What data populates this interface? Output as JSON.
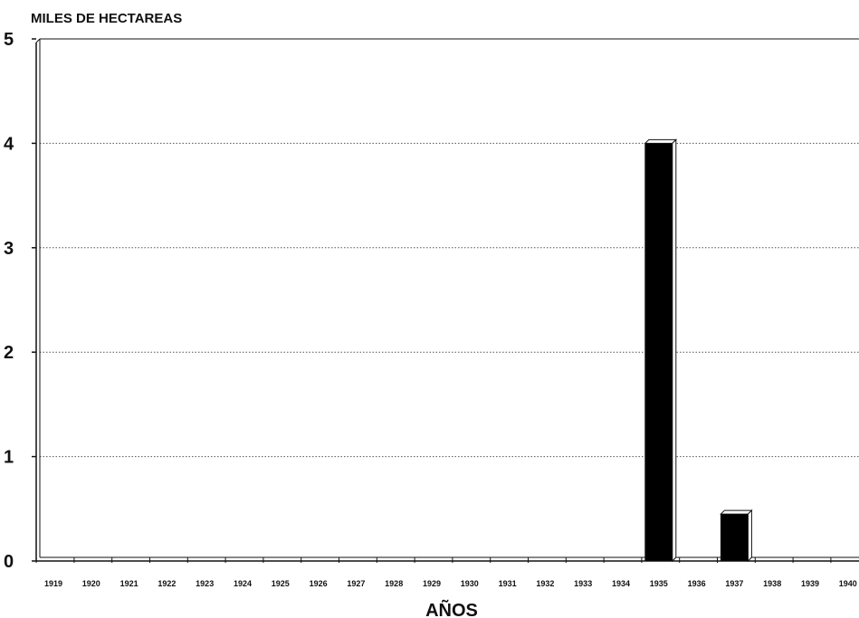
{
  "chart_data": {
    "type": "bar",
    "ylabel": "MILES DE HECTAREAS",
    "xlabel": "AÑOS",
    "ylim": [
      0,
      5
    ],
    "yticks": [
      "0",
      "1",
      "2",
      "3",
      "4",
      "5"
    ],
    "grid": true,
    "categories": [
      "1919",
      "1920",
      "1921",
      "1922",
      "1923",
      "1924",
      "1925",
      "1926",
      "1927",
      "1928",
      "1929",
      "1930",
      "1931",
      "1932",
      "1933",
      "1934",
      "1935",
      "1936",
      "1937",
      "1938",
      "1939",
      "1940"
    ],
    "values": [
      0,
      0,
      0,
      0,
      0,
      0,
      0,
      0,
      0,
      0,
      0,
      0,
      0,
      0,
      0,
      0,
      4,
      0,
      0.45,
      0,
      0,
      0
    ],
    "colors": {
      "bar": "#000000",
      "bar_top": "#ffffff",
      "grid": "#555555",
      "axis": "#111111"
    }
  }
}
